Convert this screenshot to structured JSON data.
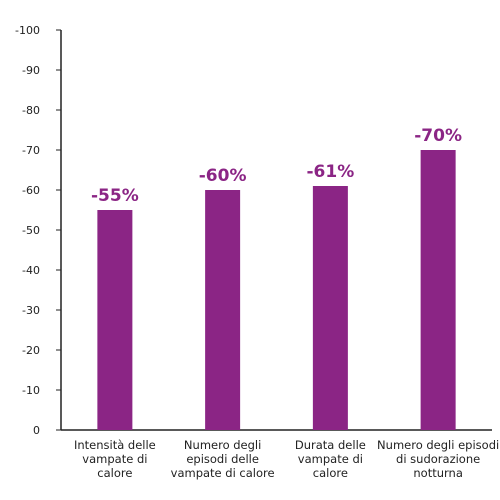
{
  "chart_data": {
    "type": "bar",
    "title": "",
    "xlabel": "",
    "ylabel": "",
    "categories": [
      [
        "Intensità delle",
        "vampate di",
        "calore"
      ],
      [
        "Numero degli",
        "episodi delle",
        "vampate di calore"
      ],
      [
        "Durata delle",
        "vampate di",
        "calore"
      ],
      [
        "Numero degli episodi",
        "di sudorazione",
        "notturna"
      ]
    ],
    "values": [
      -55,
      -60,
      -61,
      -70
    ],
    "data_labels": [
      "-55%",
      "-60%",
      "-61%",
      "-70%"
    ],
    "ylim": [
      0,
      -100
    ],
    "yticks": [
      0,
      -10,
      -20,
      -30,
      -40,
      -50,
      -60,
      -70,
      -80,
      -90,
      -100
    ],
    "ytick_labels": [
      "0",
      "-10",
      "-20",
      "-30",
      "-40",
      "-50",
      "-60",
      "-70",
      "-80",
      "-90",
      "-100"
    ],
    "grid": false,
    "legend": "none",
    "bar_color": "#8b2585",
    "label_color": "#8b2585"
  }
}
